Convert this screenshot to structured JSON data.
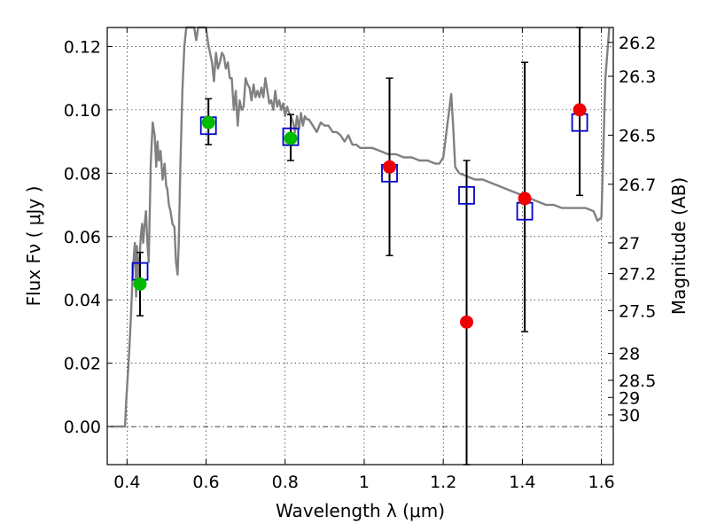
{
  "chart_data": {
    "type": "line",
    "xlabel": "Wavelength  λ (μm)",
    "ylabel": "Flux  Fν  ( μJy )",
    "ylabel_right": "Magnitude (AB)",
    "xlim": [
      0.35,
      1.63
    ],
    "ylim": [
      -0.012,
      0.126
    ],
    "grid": true,
    "x_ticks": [
      {
        "value": 0.4,
        "label": "0.4"
      },
      {
        "value": 0.6,
        "label": "0.6"
      },
      {
        "value": 0.8,
        "label": "0.8"
      },
      {
        "value": 1.0,
        "label": "1"
      },
      {
        "value": 1.2,
        "label": "1.2"
      },
      {
        "value": 1.4,
        "label": "1.4"
      },
      {
        "value": 1.6,
        "label": "1.6"
      }
    ],
    "y_ticks": [
      {
        "value": 0.0,
        "label": "0.00"
      },
      {
        "value": 0.02,
        "label": "0.02"
      },
      {
        "value": 0.04,
        "label": "0.04"
      },
      {
        "value": 0.06,
        "label": "0.06"
      },
      {
        "value": 0.08,
        "label": "0.08"
      },
      {
        "value": 0.1,
        "label": "0.10"
      },
      {
        "value": 0.12,
        "label": "0.12"
      }
    ],
    "right_ticks": [
      {
        "label": "26.2",
        "flux": 0.1213
      },
      {
        "label": "26.3",
        "flux": 0.1106
      },
      {
        "label": "26.5",
        "flux": 0.092
      },
      {
        "label": "26.7",
        "flux": 0.0765
      },
      {
        "label": "27",
        "flux": 0.058
      },
      {
        "label": "27.2",
        "flux": 0.0483
      },
      {
        "label": "27.5",
        "flux": 0.0366
      },
      {
        "label": "28",
        "flux": 0.0231
      },
      {
        "label": "28.5",
        "flux": 0.0146
      },
      {
        "label": "29",
        "flux": 0.0092
      },
      {
        "label": "30",
        "flux": 0.0037
      }
    ],
    "series": [
      {
        "type": "line",
        "color": "#808080",
        "points": [
          [
            0.36,
            0.0
          ],
          [
            0.395,
            0.0
          ],
          [
            0.398,
            0.008
          ],
          [
            0.405,
            0.022
          ],
          [
            0.41,
            0.035
          ],
          [
            0.415,
            0.05
          ],
          [
            0.42,
            0.058
          ],
          [
            0.423,
            0.041
          ],
          [
            0.425,
            0.057
          ],
          [
            0.428,
            0.047
          ],
          [
            0.432,
            0.054
          ],
          [
            0.435,
            0.06
          ],
          [
            0.438,
            0.064
          ],
          [
            0.441,
            0.058
          ],
          [
            0.444,
            0.063
          ],
          [
            0.448,
            0.068
          ],
          [
            0.452,
            0.057
          ],
          [
            0.455,
            0.052
          ],
          [
            0.46,
            0.083
          ],
          [
            0.465,
            0.096
          ],
          [
            0.47,
            0.092
          ],
          [
            0.474,
            0.082
          ],
          [
            0.477,
            0.09
          ],
          [
            0.481,
            0.084
          ],
          [
            0.485,
            0.087
          ],
          [
            0.49,
            0.078
          ],
          [
            0.495,
            0.083
          ],
          [
            0.499,
            0.076
          ],
          [
            0.502,
            0.075
          ],
          [
            0.506,
            0.07
          ],
          [
            0.51,
            0.068
          ],
          [
            0.515,
            0.064
          ],
          [
            0.52,
            0.063
          ],
          [
            0.524,
            0.052
          ],
          [
            0.528,
            0.048
          ],
          [
            0.531,
            0.058
          ],
          [
            0.535,
            0.082
          ],
          [
            0.54,
            0.106
          ],
          [
            0.545,
            0.12
          ],
          [
            0.55,
            0.126
          ],
          [
            0.56,
            0.126
          ],
          [
            0.57,
            0.126
          ],
          [
            0.575,
            0.122
          ],
          [
            0.58,
            0.126
          ],
          [
            0.59,
            0.126
          ],
          [
            0.6,
            0.126
          ],
          [
            0.605,
            0.121
          ],
          [
            0.61,
            0.118
          ],
          [
            0.615,
            0.115
          ],
          [
            0.62,
            0.109
          ],
          [
            0.625,
            0.118
          ],
          [
            0.63,
            0.113
          ],
          [
            0.635,
            0.115
          ],
          [
            0.64,
            0.118
          ],
          [
            0.645,
            0.117
          ],
          [
            0.65,
            0.113
          ],
          [
            0.655,
            0.115
          ],
          [
            0.66,
            0.11
          ],
          [
            0.665,
            0.11
          ],
          [
            0.67,
            0.1
          ],
          [
            0.675,
            0.106
          ],
          [
            0.68,
            0.095
          ],
          [
            0.685,
            0.103
          ],
          [
            0.69,
            0.1
          ],
          [
            0.695,
            0.101
          ],
          [
            0.7,
            0.11
          ],
          [
            0.705,
            0.108
          ],
          [
            0.71,
            0.107
          ],
          [
            0.715,
            0.103
          ],
          [
            0.72,
            0.108
          ],
          [
            0.725,
            0.104
          ],
          [
            0.73,
            0.106
          ],
          [
            0.735,
            0.104
          ],
          [
            0.74,
            0.107
          ],
          [
            0.745,
            0.104
          ],
          [
            0.75,
            0.11
          ],
          [
            0.755,
            0.106
          ],
          [
            0.76,
            0.102
          ],
          [
            0.765,
            0.103
          ],
          [
            0.77,
            0.1
          ],
          [
            0.775,
            0.106
          ],
          [
            0.78,
            0.101
          ],
          [
            0.785,
            0.103
          ],
          [
            0.79,
            0.1
          ],
          [
            0.795,
            0.102
          ],
          [
            0.8,
            0.098
          ],
          [
            0.805,
            0.101
          ],
          [
            0.81,
            0.099
          ],
          [
            0.815,
            0.098
          ],
          [
            0.82,
            0.096
          ],
          [
            0.825,
            0.093
          ],
          [
            0.83,
            0.098
          ],
          [
            0.835,
            0.094
          ],
          [
            0.84,
            0.099
          ],
          [
            0.845,
            0.095
          ],
          [
            0.85,
            0.098
          ],
          [
            0.855,
            0.097
          ],
          [
            0.86,
            0.097
          ],
          [
            0.87,
            0.095
          ],
          [
            0.88,
            0.093
          ],
          [
            0.89,
            0.096
          ],
          [
            0.9,
            0.095
          ],
          [
            0.91,
            0.095
          ],
          [
            0.92,
            0.093
          ],
          [
            0.93,
            0.093
          ],
          [
            0.94,
            0.092
          ],
          [
            0.95,
            0.09
          ],
          [
            0.96,
            0.092
          ],
          [
            0.97,
            0.089
          ],
          [
            0.98,
            0.089
          ],
          [
            0.99,
            0.088
          ],
          [
            1.0,
            0.088
          ],
          [
            1.02,
            0.088
          ],
          [
            1.04,
            0.087
          ],
          [
            1.06,
            0.086
          ],
          [
            1.08,
            0.086
          ],
          [
            1.1,
            0.085
          ],
          [
            1.12,
            0.085
          ],
          [
            1.14,
            0.084
          ],
          [
            1.16,
            0.084
          ],
          [
            1.18,
            0.083
          ],
          [
            1.19,
            0.083
          ],
          [
            1.2,
            0.085
          ],
          [
            1.21,
            0.095
          ],
          [
            1.215,
            0.1
          ],
          [
            1.22,
            0.105
          ],
          [
            1.225,
            0.095
          ],
          [
            1.23,
            0.082
          ],
          [
            1.24,
            0.08
          ],
          [
            1.26,
            0.079
          ],
          [
            1.28,
            0.078
          ],
          [
            1.3,
            0.078
          ],
          [
            1.32,
            0.077
          ],
          [
            1.34,
            0.076
          ],
          [
            1.36,
            0.075
          ],
          [
            1.38,
            0.074
          ],
          [
            1.4,
            0.073
          ],
          [
            1.42,
            0.072
          ],
          [
            1.44,
            0.071
          ],
          [
            1.46,
            0.07
          ],
          [
            1.48,
            0.07
          ],
          [
            1.5,
            0.069
          ],
          [
            1.52,
            0.069
          ],
          [
            1.54,
            0.069
          ],
          [
            1.56,
            0.069
          ],
          [
            1.58,
            0.068
          ],
          [
            1.59,
            0.065
          ],
          [
            1.6,
            0.066
          ],
          [
            1.61,
            0.11
          ],
          [
            1.62,
            0.126
          ]
        ]
      },
      {
        "type": "scatter",
        "marker": "open-square",
        "color": "#0000cc",
        "points": [
          [
            0.433,
            0.049
          ],
          [
            0.606,
            0.095
          ],
          [
            0.814,
            0.0915
          ],
          [
            1.064,
            0.08
          ],
          [
            1.259,
            0.073
          ],
          [
            1.406,
            0.068
          ],
          [
            1.545,
            0.096
          ]
        ]
      },
      {
        "type": "scatter",
        "marker": "filled-circle",
        "color": "#00bb00",
        "points": [
          [
            0.433,
            0.045
          ],
          [
            0.606,
            0.096
          ],
          [
            0.814,
            0.091
          ]
        ]
      },
      {
        "type": "scatter",
        "marker": "filled-circle",
        "color": "#ee0000",
        "points": [
          [
            1.064,
            0.082
          ],
          [
            1.259,
            0.033
          ],
          [
            1.406,
            0.072
          ],
          [
            1.545,
            0.1
          ]
        ]
      },
      {
        "type": "errorbar",
        "color": "#000000",
        "bars": [
          {
            "x": 0.433,
            "low": 0.035,
            "high": 0.055
          },
          {
            "x": 0.606,
            "low": 0.089,
            "high": 0.1035
          },
          {
            "x": 0.814,
            "low": 0.084,
            "high": 0.0985
          },
          {
            "x": 1.064,
            "low": 0.054,
            "high": 0.11
          },
          {
            "x": 1.259,
            "low": -0.012,
            "high": 0.084
          },
          {
            "x": 1.406,
            "low": 0.03,
            "high": 0.115
          },
          {
            "x": 1.545,
            "low": 0.073,
            "high": 0.126
          }
        ]
      }
    ]
  }
}
